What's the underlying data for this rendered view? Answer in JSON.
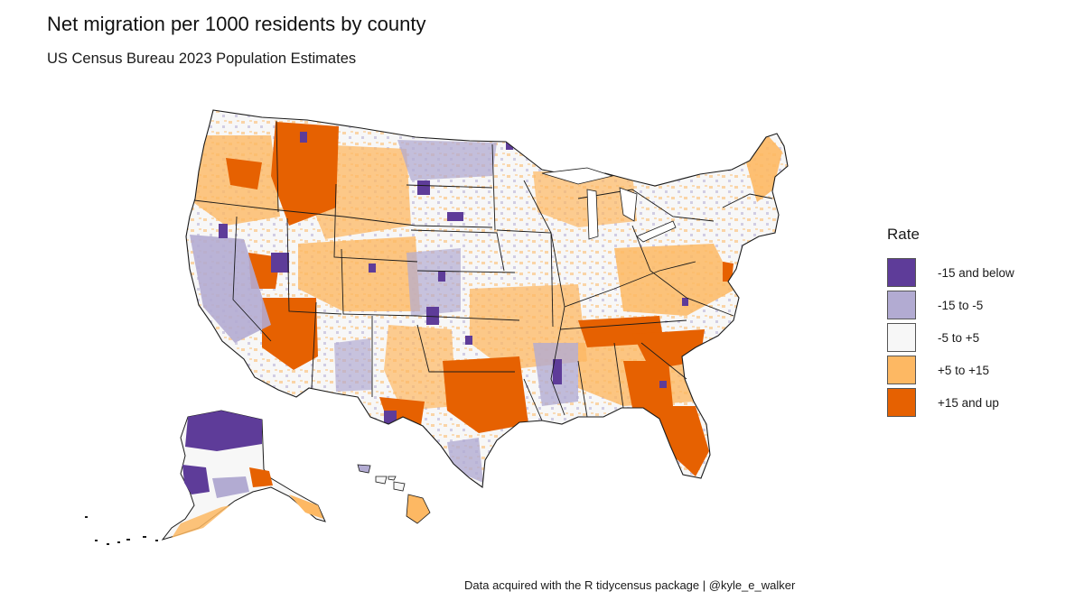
{
  "title": "Net migration per 1000 residents by county",
  "subtitle": "US Census Bureau 2023 Population Estimates",
  "caption": "Data acquired with the R tidycensus package | @kyle_e_walker",
  "legend": {
    "title": "Rate",
    "items": [
      {
        "label": "-15 and below",
        "color": "#5e3c99"
      },
      {
        "label": "-15 to -5",
        "color": "#b2abd2"
      },
      {
        "label": "-5 to +5",
        "color": "#f7f7f7"
      },
      {
        "label": "+5 to +15",
        "color": "#fdb863"
      },
      {
        "label": "+15 and up",
        "color": "#e66101"
      }
    ]
  },
  "colors": {
    "border": "#1a1a1a",
    "strong_negative": "#5e3c99",
    "negative": "#b2abd2",
    "neutral": "#f7f7f7",
    "positive": "#fdb863",
    "strong_positive": "#e66101"
  }
}
